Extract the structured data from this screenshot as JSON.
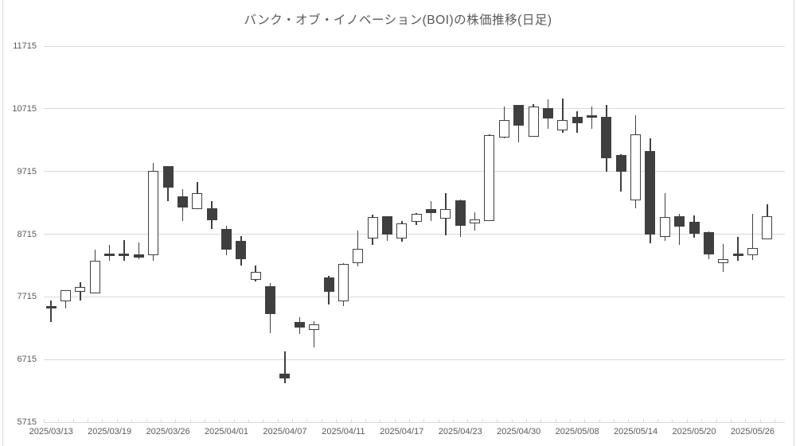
{
  "chart_data": {
    "type": "candlestick",
    "title": "バンク・オブ・イノベーション(BOI)の株価推移(日足)",
    "xlabel": "",
    "ylabel": "",
    "ylim": [
      5715,
      11715
    ],
    "y_ticks": [
      5715,
      6715,
      7715,
      8715,
      9715,
      10715,
      11715
    ],
    "grid": true,
    "x_ticklabels": [
      "2025/03/13",
      "2025/03/19",
      "2025/03/26",
      "2025/04/01",
      "2025/04/07",
      "2025/04/11",
      "2025/04/17",
      "2025/04/23",
      "2025/04/30",
      "2025/05/08",
      "2025/05/14",
      "2025/05/20",
      "2025/05/26"
    ],
    "x_label_every": 4,
    "colors": {
      "up_fill": "#ffffff",
      "down_fill": "#3f3f3f",
      "outline": "#404040",
      "grid": "#d9d9d9",
      "text": "#595959",
      "background": "#ffffff"
    },
    "candles": [
      {
        "date": "2025/03/13",
        "open": 7570,
        "high": 7655,
        "low": 7315,
        "close": 7530
      },
      {
        "date": "2025/03/14",
        "open": 7640,
        "high": 7820,
        "low": 7535,
        "close": 7815
      },
      {
        "date": "2025/03/17",
        "open": 7800,
        "high": 7950,
        "low": 7650,
        "close": 7875
      },
      {
        "date": "2025/03/18",
        "open": 7775,
        "high": 8470,
        "low": 7770,
        "close": 8295
      },
      {
        "date": "2025/03/19",
        "open": 8400,
        "high": 8545,
        "low": 8295,
        "close": 8375
      },
      {
        "date": "2025/03/21",
        "open": 8400,
        "high": 8620,
        "low": 8295,
        "close": 8385
      },
      {
        "date": "2025/03/24",
        "open": 8390,
        "high": 8585,
        "low": 8320,
        "close": 8345
      },
      {
        "date": "2025/03/25",
        "open": 8380,
        "high": 9845,
        "low": 8295,
        "close": 9720
      },
      {
        "date": "2025/03/26",
        "open": 9795,
        "high": 9800,
        "low": 9240,
        "close": 9455
      },
      {
        "date": "2025/03/27",
        "open": 9315,
        "high": 9430,
        "low": 8925,
        "close": 9140
      },
      {
        "date": "2025/03/28",
        "open": 9115,
        "high": 9545,
        "low": 9110,
        "close": 9365
      },
      {
        "date": "2025/03/31",
        "open": 9125,
        "high": 9240,
        "low": 8800,
        "close": 8935
      },
      {
        "date": "2025/04/01",
        "open": 8800,
        "high": 8850,
        "low": 8380,
        "close": 8470
      },
      {
        "date": "2025/04/02",
        "open": 8610,
        "high": 8685,
        "low": 8215,
        "close": 8320
      },
      {
        "date": "2025/04/03",
        "open": 7990,
        "high": 8215,
        "low": 7965,
        "close": 8115
      },
      {
        "date": "2025/04/04",
        "open": 7890,
        "high": 7940,
        "low": 7130,
        "close": 7435
      },
      {
        "date": "2025/04/07",
        "open": 6495,
        "high": 6845,
        "low": 6340,
        "close": 6410
      },
      {
        "date": "2025/04/08",
        "open": 7310,
        "high": 7395,
        "low": 7120,
        "close": 7220
      },
      {
        "date": "2025/04/09",
        "open": 7190,
        "high": 7320,
        "low": 6905,
        "close": 7275
      },
      {
        "date": "2025/04/10",
        "open": 8030,
        "high": 8055,
        "low": 7590,
        "close": 7795
      },
      {
        "date": "2025/04/11",
        "open": 7645,
        "high": 8250,
        "low": 7570,
        "close": 8245
      },
      {
        "date": "2025/04/14",
        "open": 8255,
        "high": 8775,
        "low": 8195,
        "close": 8485
      },
      {
        "date": "2025/04/15",
        "open": 8650,
        "high": 9030,
        "low": 8540,
        "close": 8985
      },
      {
        "date": "2025/04/16",
        "open": 8995,
        "high": 9000,
        "low": 8605,
        "close": 8710
      },
      {
        "date": "2025/04/17",
        "open": 8640,
        "high": 8925,
        "low": 8595,
        "close": 8880
      },
      {
        "date": "2025/04/18",
        "open": 8910,
        "high": 9045,
        "low": 8860,
        "close": 9035
      },
      {
        "date": "2025/04/21",
        "open": 9115,
        "high": 9240,
        "low": 8925,
        "close": 9050
      },
      {
        "date": "2025/04/22",
        "open": 8965,
        "high": 9365,
        "low": 8690,
        "close": 9115
      },
      {
        "date": "2025/04/23",
        "open": 9260,
        "high": 9265,
        "low": 8670,
        "close": 8845
      },
      {
        "date": "2025/04/24",
        "open": 8880,
        "high": 9070,
        "low": 8775,
        "close": 8950
      },
      {
        "date": "2025/04/25",
        "open": 8925,
        "high": 10305,
        "low": 8920,
        "close": 10290
      },
      {
        "date": "2025/04/28",
        "open": 10250,
        "high": 10745,
        "low": 10245,
        "close": 10540
      },
      {
        "date": "2025/04/30",
        "open": 10770,
        "high": 10775,
        "low": 10185,
        "close": 10450
      },
      {
        "date": "2025/05/01",
        "open": 10275,
        "high": 10795,
        "low": 10270,
        "close": 10750
      },
      {
        "date": "2025/05/02",
        "open": 10720,
        "high": 10865,
        "low": 10400,
        "close": 10560
      },
      {
        "date": "2025/05/07",
        "open": 10370,
        "high": 10880,
        "low": 10330,
        "close": 10530
      },
      {
        "date": "2025/05/08",
        "open": 10585,
        "high": 10675,
        "low": 10330,
        "close": 10485
      },
      {
        "date": "2025/05/09",
        "open": 10615,
        "high": 10750,
        "low": 10390,
        "close": 10595
      },
      {
        "date": "2025/05/12",
        "open": 10580,
        "high": 10770,
        "low": 9715,
        "close": 9925
      },
      {
        "date": "2025/05/13",
        "open": 9980,
        "high": 9985,
        "low": 9390,
        "close": 9705
      },
      {
        "date": "2025/05/14",
        "open": 9255,
        "high": 10610,
        "low": 9125,
        "close": 10305
      },
      {
        "date": "2025/05/15",
        "open": 10035,
        "high": 10245,
        "low": 8570,
        "close": 8705
      },
      {
        "date": "2025/05/16",
        "open": 8665,
        "high": 9370,
        "low": 8610,
        "close": 8985
      },
      {
        "date": "2025/05/19",
        "open": 9000,
        "high": 9040,
        "low": 8550,
        "close": 8830
      },
      {
        "date": "2025/05/20",
        "open": 8910,
        "high": 9015,
        "low": 8655,
        "close": 8725
      },
      {
        "date": "2025/05/21",
        "open": 8750,
        "high": 8755,
        "low": 8320,
        "close": 8390
      },
      {
        "date": "2025/05/22",
        "open": 8255,
        "high": 8560,
        "low": 8115,
        "close": 8320
      },
      {
        "date": "2025/05/23",
        "open": 8405,
        "high": 8675,
        "low": 8295,
        "close": 8390
      },
      {
        "date": "2025/05/26",
        "open": 8380,
        "high": 9040,
        "low": 8305,
        "close": 8495
      },
      {
        "date": "2025/05/27",
        "open": 8635,
        "high": 9190,
        "low": 8630,
        "close": 9005
      }
    ]
  }
}
